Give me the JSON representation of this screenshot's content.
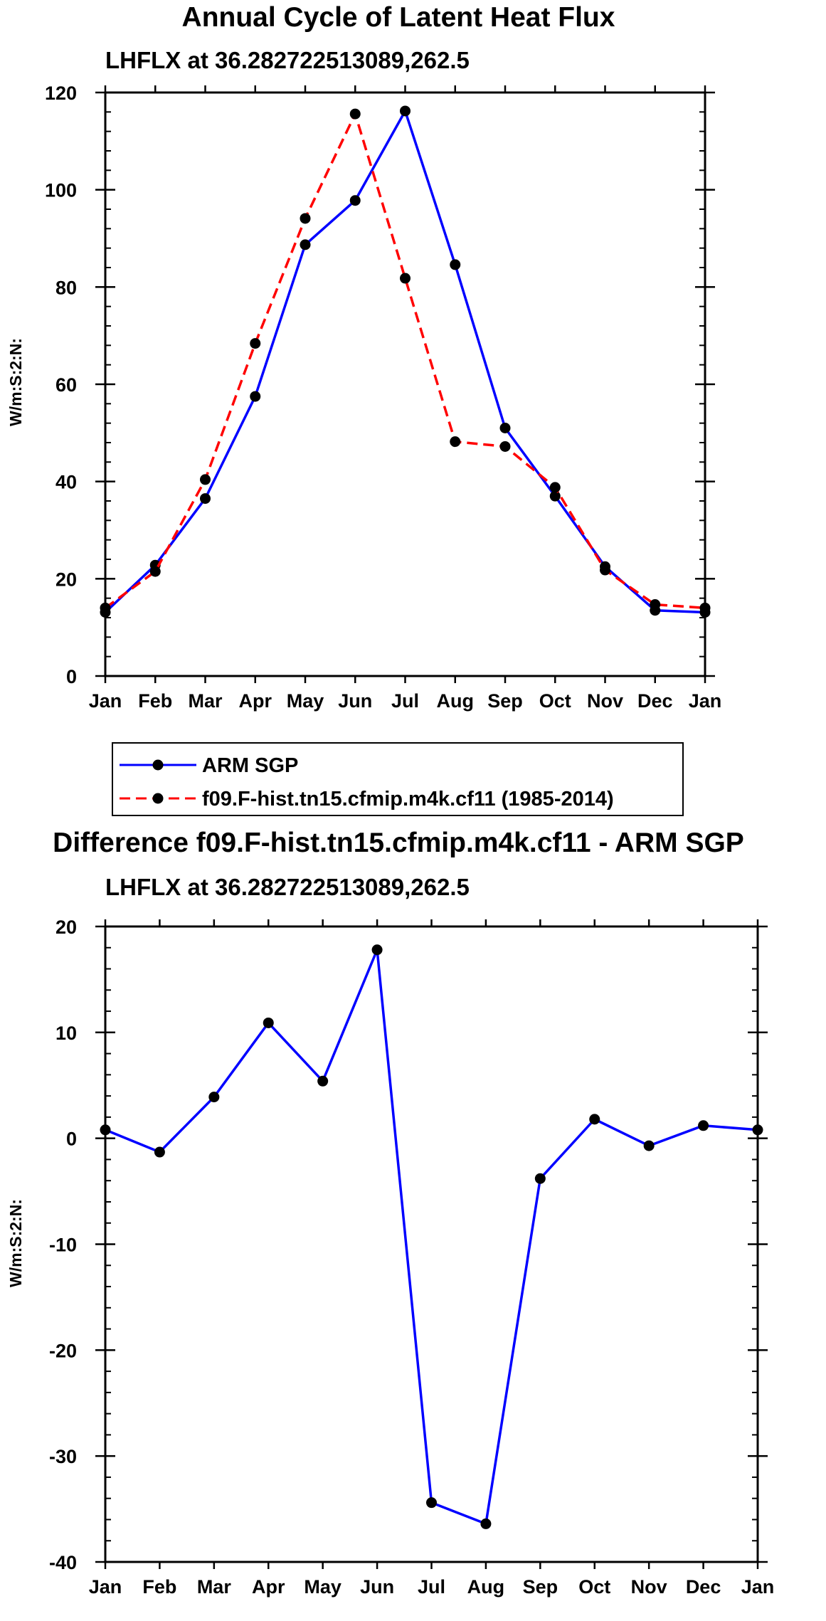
{
  "chart_data": [
    {
      "type": "line",
      "title": "Annual Cycle of Latent Heat Flux",
      "subtitle": "LHFLX at 36.282722513089,262.5",
      "ylabel": "W/m:S:2:N:",
      "xlabel": "",
      "categories": [
        "Jan",
        "Feb",
        "Mar",
        "Apr",
        "May",
        "Jun",
        "Jul",
        "Aug",
        "Sep",
        "Oct",
        "Nov",
        "Dec",
        "Jan"
      ],
      "ylim": [
        0,
        120
      ],
      "yticks": [
        "0",
        "20",
        "40",
        "60",
        "80",
        "100",
        "120"
      ],
      "series": [
        {
          "name": "ARM SGP",
          "color": "#0000ff",
          "dash": "solid",
          "values": [
            13.1,
            22.8,
            36.5,
            57.5,
            88.7,
            97.8,
            116.2,
            84.6,
            51.0,
            37.0,
            22.5,
            13.5,
            13.1
          ]
        },
        {
          "name": "f09.F-hist.tn15.cfmip.m4k.cf11 (1985-2014)",
          "color": "#ff0000",
          "dash": "dashed",
          "values": [
            14.0,
            21.5,
            40.4,
            68.4,
            94.1,
            115.6,
            81.8,
            48.2,
            47.2,
            38.8,
            21.8,
            14.7,
            14.0
          ]
        }
      ],
      "legend": [
        "ARM SGP",
        "f09.F-hist.tn15.cfmip.m4k.cf11 (1985-2014)"
      ]
    },
    {
      "type": "line",
      "title": "Difference f09.F-hist.tn15.cfmip.m4k.cf11 - ARM SGP",
      "subtitle": "LHFLX at 36.282722513089,262.5",
      "ylabel": "W/m:S:2:N:",
      "xlabel": "",
      "categories": [
        "Jan",
        "Feb",
        "Mar",
        "Apr",
        "May",
        "Jun",
        "Jul",
        "Aug",
        "Sep",
        "Oct",
        "Nov",
        "Dec",
        "Jan"
      ],
      "ylim": [
        -40,
        20
      ],
      "yticks": [
        "-40",
        "-30",
        "-20",
        "-10",
        "0",
        "10",
        "20"
      ],
      "series": [
        {
          "name": "Difference",
          "color": "#0000ff",
          "dash": "solid",
          "values": [
            0.8,
            -1.3,
            3.9,
            10.9,
            5.4,
            17.8,
            -34.4,
            -36.4,
            -3.8,
            1.8,
            -0.7,
            1.2,
            0.8
          ]
        }
      ]
    }
  ]
}
